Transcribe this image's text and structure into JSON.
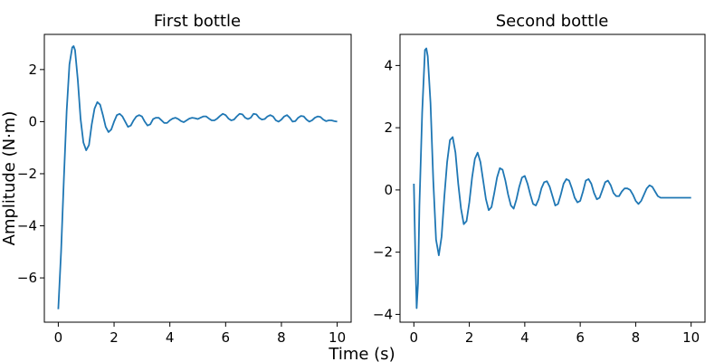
{
  "figure": {
    "xlabel": "Time (s)",
    "ylabel": "Amplitude (N·m)"
  },
  "chart_data": [
    {
      "type": "line",
      "title": "First bottle",
      "xlabel": "",
      "ylabel": "",
      "xlim": [
        -0.5,
        10.5
      ],
      "ylim": [
        -7.7,
        3.35
      ],
      "xticks": [
        0,
        2,
        4,
        6,
        8,
        10
      ],
      "xtick_labels": [
        "0",
        "2",
        "4",
        "6",
        "8",
        "10"
      ],
      "yticks": [
        2,
        0,
        -2,
        -4,
        -6
      ],
      "ytick_labels": [
        "2",
        "0",
        "−2",
        "−4",
        "−6"
      ],
      "grid": false,
      "color": "#1f77b4",
      "series": [
        {
          "x": [
            0.0,
            0.1,
            0.2,
            0.3,
            0.4,
            0.5,
            0.55,
            0.6,
            0.7,
            0.8,
            0.9,
            1.0,
            1.1,
            1.2,
            1.3,
            1.4,
            1.5,
            1.6,
            1.7,
            1.8,
            1.9,
            2.0,
            2.1,
            2.2,
            2.3,
            2.4,
            2.5,
            2.6,
            2.7,
            2.8,
            2.9,
            3.0,
            3.1,
            3.2,
            3.3,
            3.4,
            3.5,
            3.6,
            3.7,
            3.8,
            3.9,
            4.0,
            4.1,
            4.2,
            4.3,
            4.4,
            4.5,
            4.6,
            4.7,
            4.8,
            4.9,
            5.0,
            5.1,
            5.2,
            5.3,
            5.4,
            5.5,
            5.6,
            5.7,
            5.8,
            5.9,
            6.0,
            6.1,
            6.2,
            6.3,
            6.4,
            6.5,
            6.6,
            6.7,
            6.8,
            6.9,
            7.0,
            7.1,
            7.2,
            7.3,
            7.4,
            7.5,
            7.6,
            7.7,
            7.8,
            7.9,
            8.0,
            8.1,
            8.2,
            8.3,
            8.4,
            8.5,
            8.6,
            8.7,
            8.8,
            8.9,
            9.0,
            9.1,
            9.2,
            9.3,
            9.4,
            9.5,
            9.6,
            9.7,
            9.8,
            9.9,
            10.0
          ],
          "y": [
            -7.2,
            -5.0,
            -2.2,
            0.4,
            2.2,
            2.85,
            2.9,
            2.75,
            1.6,
            0.1,
            -0.8,
            -1.1,
            -0.9,
            -0.1,
            0.5,
            0.75,
            0.65,
            0.25,
            -0.2,
            -0.4,
            -0.3,
            0.0,
            0.25,
            0.3,
            0.2,
            0.0,
            -0.2,
            -0.15,
            0.05,
            0.2,
            0.25,
            0.2,
            0.0,
            -0.15,
            -0.1,
            0.1,
            0.15,
            0.15,
            0.05,
            -0.05,
            -0.05,
            0.05,
            0.12,
            0.15,
            0.1,
            0.02,
            -0.02,
            0.05,
            0.12,
            0.15,
            0.13,
            0.1,
            0.15,
            0.2,
            0.2,
            0.12,
            0.05,
            0.05,
            0.12,
            0.22,
            0.3,
            0.25,
            0.12,
            0.05,
            0.08,
            0.2,
            0.3,
            0.28,
            0.15,
            0.1,
            0.15,
            0.3,
            0.28,
            0.15,
            0.08,
            0.1,
            0.2,
            0.25,
            0.2,
            0.05,
            0.0,
            0.08,
            0.2,
            0.25,
            0.15,
            0.0,
            0.02,
            0.15,
            0.22,
            0.2,
            0.08,
            0.0,
            0.05,
            0.15,
            0.2,
            0.18,
            0.08,
            0.02,
            0.05,
            0.05,
            0.02,
            0.0
          ]
        }
      ]
    },
    {
      "type": "line",
      "title": "Second bottle",
      "xlabel": "",
      "ylabel": "",
      "xlim": [
        -0.5,
        10.5
      ],
      "ylim": [
        -4.25,
        5.0
      ],
      "xticks": [
        0,
        2,
        4,
        6,
        8,
        10
      ],
      "xtick_labels": [
        "0",
        "2",
        "4",
        "6",
        "8",
        "10"
      ],
      "yticks": [
        4,
        2,
        0,
        -2,
        -4
      ],
      "ytick_labels": [
        "4",
        "2",
        "0",
        "−2",
        "−4"
      ],
      "grid": false,
      "color": "#1f77b4",
      "series": [
        {
          "x": [
            0.0,
            0.05,
            0.1,
            0.15,
            0.2,
            0.3,
            0.4,
            0.45,
            0.5,
            0.6,
            0.7,
            0.8,
            0.9,
            1.0,
            1.1,
            1.2,
            1.3,
            1.4,
            1.5,
            1.6,
            1.7,
            1.8,
            1.9,
            2.0,
            2.1,
            2.2,
            2.3,
            2.4,
            2.5,
            2.6,
            2.7,
            2.8,
            2.9,
            3.0,
            3.1,
            3.2,
            3.3,
            3.4,
            3.5,
            3.6,
            3.7,
            3.8,
            3.9,
            4.0,
            4.1,
            4.2,
            4.3,
            4.4,
            4.5,
            4.6,
            4.7,
            4.8,
            4.9,
            5.0,
            5.1,
            5.2,
            5.3,
            5.4,
            5.5,
            5.6,
            5.7,
            5.8,
            5.9,
            6.0,
            6.1,
            6.2,
            6.3,
            6.4,
            6.5,
            6.6,
            6.7,
            6.8,
            6.9,
            7.0,
            7.1,
            7.2,
            7.3,
            7.4,
            7.5,
            7.6,
            7.7,
            7.8,
            7.9,
            8.0,
            8.1,
            8.2,
            8.3,
            8.4,
            8.5,
            8.6,
            8.7,
            8.8,
            8.9,
            9.0,
            9.1,
            9.2,
            9.3,
            9.4,
            9.5,
            9.6,
            9.7,
            9.8,
            9.9,
            10.0
          ],
          "y": [
            0.2,
            -2.0,
            -3.8,
            -3.0,
            -0.5,
            2.5,
            4.5,
            4.55,
            4.3,
            2.8,
            0.3,
            -1.6,
            -2.1,
            -1.5,
            -0.2,
            0.9,
            1.6,
            1.7,
            1.2,
            0.2,
            -0.6,
            -1.1,
            -1.0,
            -0.4,
            0.4,
            1.0,
            1.2,
            0.9,
            0.3,
            -0.3,
            -0.65,
            -0.55,
            -0.1,
            0.4,
            0.7,
            0.65,
            0.3,
            -0.15,
            -0.5,
            -0.6,
            -0.3,
            0.1,
            0.4,
            0.45,
            0.2,
            -0.15,
            -0.45,
            -0.5,
            -0.3,
            0.05,
            0.25,
            0.28,
            0.1,
            -0.2,
            -0.5,
            -0.45,
            -0.15,
            0.2,
            0.35,
            0.3,
            0.05,
            -0.25,
            -0.4,
            -0.35,
            -0.05,
            0.3,
            0.35,
            0.2,
            -0.1,
            -0.3,
            -0.25,
            0.0,
            0.25,
            0.3,
            0.15,
            -0.1,
            -0.2,
            -0.2,
            -0.05,
            0.05,
            0.05,
            0.0,
            -0.15,
            -0.35,
            -0.45,
            -0.35,
            -0.15,
            0.05,
            0.15,
            0.1,
            -0.05,
            -0.2,
            -0.25,
            -0.25,
            -0.25,
            -0.25,
            -0.25,
            -0.25,
            -0.25,
            -0.25,
            -0.25,
            -0.25,
            -0.25,
            -0.25
          ]
        }
      ]
    }
  ]
}
